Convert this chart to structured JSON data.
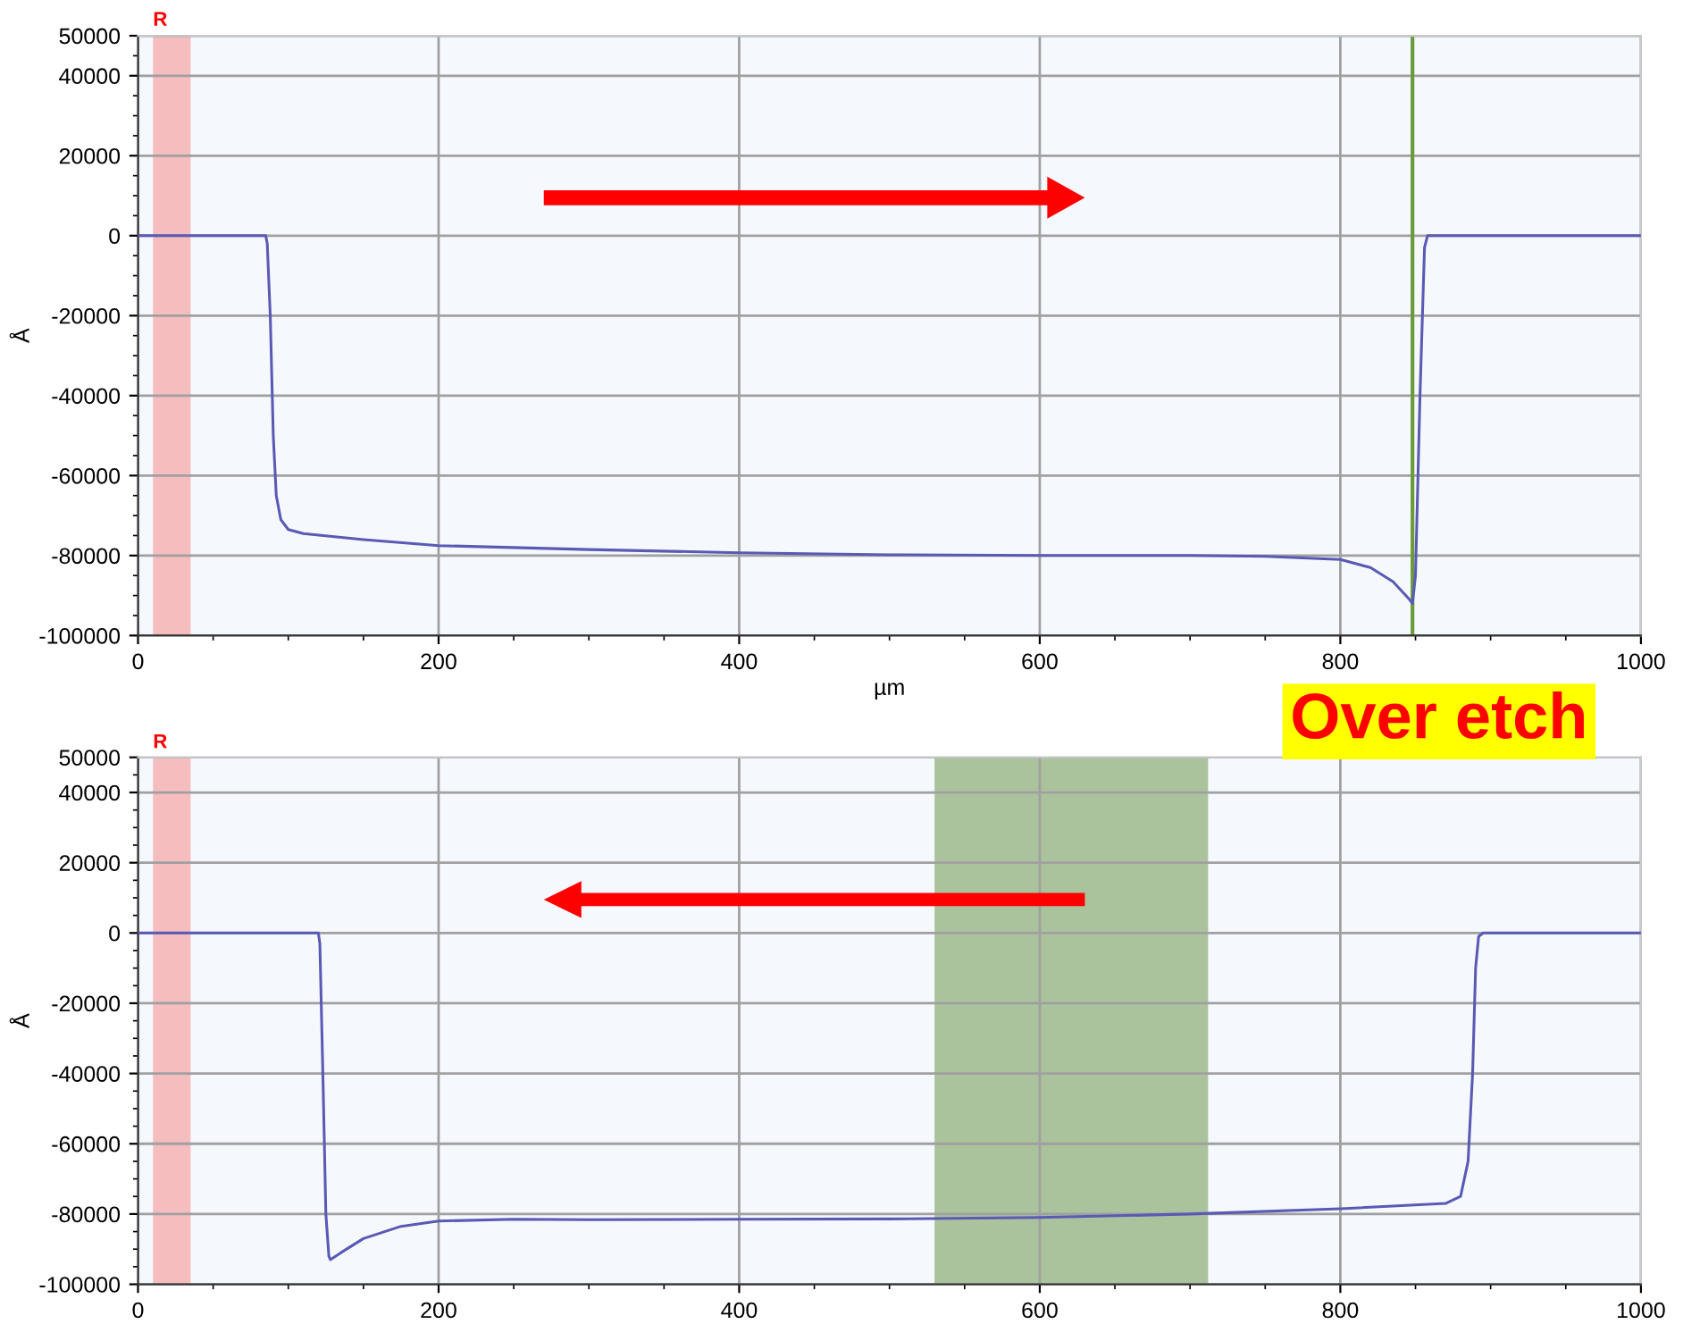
{
  "chart_data": [
    {
      "type": "line",
      "xlabel": "µm",
      "ylabel": "Å",
      "xlim": [
        0,
        1000
      ],
      "ylim": [
        -100000,
        50000
      ],
      "xticks": [
        0,
        200,
        400,
        600,
        800,
        1000
      ],
      "yticks": [
        -100000,
        -80000,
        -60000,
        -40000,
        -20000,
        0,
        20000,
        40000,
        50000
      ],
      "grid": true,
      "legend": false,
      "x": [
        0,
        10,
        85,
        86,
        88,
        90,
        92,
        95,
        100,
        110,
        150,
        200,
        300,
        400,
        500,
        600,
        700,
        750,
        800,
        820,
        835,
        846,
        848,
        850,
        853,
        856,
        858,
        1000
      ],
      "series": [
        {
          "color": "#5a5ab4",
          "values": [
            0,
            0,
            0,
            -2000,
            -20000,
            -50000,
            -65000,
            -71000,
            -73500,
            -74500,
            -76000,
            -77500,
            -78500,
            -79300,
            -79800,
            -80000,
            -80000,
            -80200,
            -81000,
            -83000,
            -86500,
            -91000,
            -92000,
            -85000,
            -40000,
            -3000,
            0,
            0
          ]
        }
      ],
      "bands": [
        {
          "axis": "x",
          "from": 10,
          "to": 35,
          "label": "R",
          "color": "#f79494"
        }
      ],
      "ref_lines": [
        {
          "axis": "x",
          "value": 848,
          "color": "#6a9a3a"
        }
      ],
      "annotations": [
        "Over etch"
      ]
    },
    {
      "type": "line",
      "ylabel": "Å",
      "xlim": [
        0,
        1000
      ],
      "ylim": [
        -100000,
        50000
      ],
      "xticks": [
        0,
        200,
        400,
        600,
        800,
        1000
      ],
      "yticks": [
        -100000,
        -80000,
        -60000,
        -40000,
        -20000,
        0,
        20000,
        40000,
        50000
      ],
      "grid": true,
      "legend": false,
      "x": [
        0,
        120,
        121,
        123,
        125,
        127,
        128,
        135,
        150,
        175,
        200,
        250,
        300,
        400,
        500,
        600,
        700,
        800,
        870,
        880,
        885,
        888,
        890,
        892,
        895,
        1000
      ],
      "series": [
        {
          "color": "#5a5ab4",
          "values": [
            0,
            0,
            -3000,
            -40000,
            -80000,
            -92000,
            -93000,
            -91000,
            -87000,
            -83500,
            -82000,
            -81500,
            -81600,
            -81500,
            -81400,
            -81000,
            -80000,
            -78500,
            -77000,
            -75000,
            -65000,
            -40000,
            -10000,
            -1000,
            0,
            0
          ]
        }
      ],
      "bands": [
        {
          "axis": "x",
          "from": 10,
          "to": 35,
          "label": "R",
          "color": "#f79494"
        },
        {
          "axis": "x",
          "from": 530,
          "to": 712,
          "color": "#7a9e5a"
        }
      ]
    }
  ]
}
